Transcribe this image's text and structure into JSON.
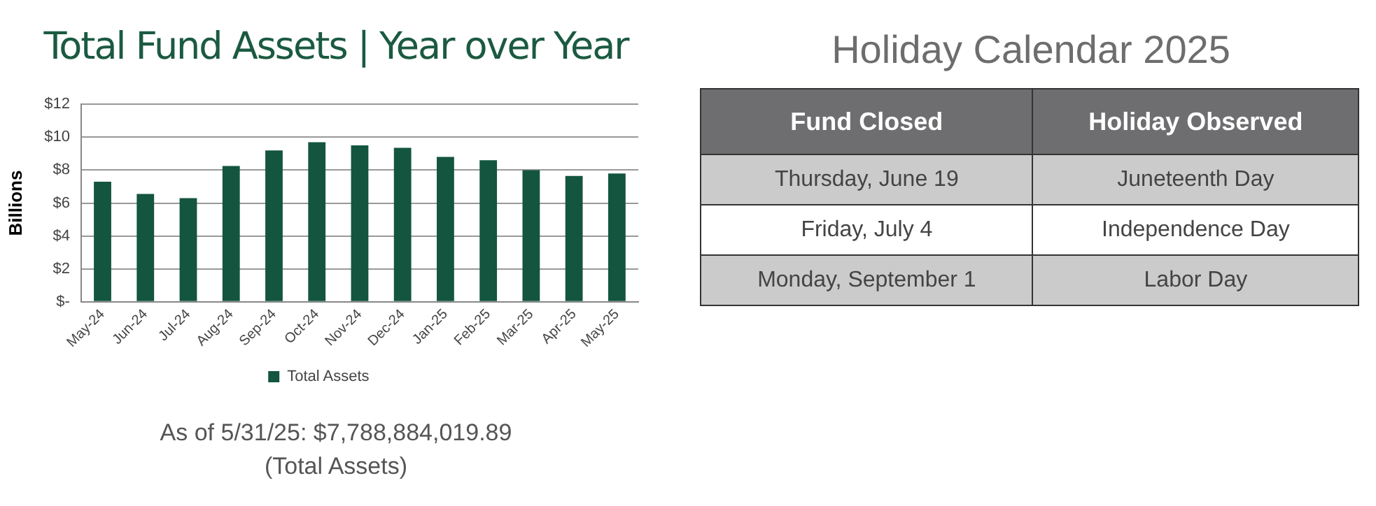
{
  "chart_data": [
    {
      "type": "bar",
      "title": "Total Fund Assets | Year over Year",
      "ylabel": "Billions",
      "categories": [
        "May-24",
        "Jun-24",
        "Jul-24",
        "Aug-24",
        "Sep-24",
        "Oct-24",
        "Nov-24",
        "Dec-24",
        "Jan-25",
        "Feb-25",
        "Mar-25",
        "Apr-25",
        "May-25"
      ],
      "series": [
        {
          "name": "Total Assets",
          "color": "#13553f",
          "values": [
            7.3,
            6.55,
            6.3,
            8.25,
            9.2,
            9.7,
            9.5,
            9.35,
            8.8,
            8.6,
            8.0,
            7.65,
            7.79
          ]
        }
      ],
      "ylim": [
        0,
        12
      ],
      "yticks": [
        {
          "value": 0,
          "label": "$-"
        },
        {
          "value": 2,
          "label": "$2"
        },
        {
          "value": 4,
          "label": "$4"
        },
        {
          "value": 6,
          "label": "$6"
        },
        {
          "value": 8,
          "label": "$8"
        },
        {
          "value": 10,
          "label": "$10"
        },
        {
          "value": 12,
          "label": "$12"
        }
      ],
      "grid": "y",
      "legend": "bottom",
      "annotations": [
        "As of 5/31/25: $7,788,884,019.89",
        "(Total Assets)"
      ]
    },
    {
      "type": "other",
      "title": "Holiday Calendar 2025",
      "annotations": [
        "Fund Closed",
        "Holiday Observed",
        "Thursday, June 19",
        "Juneteenth Day",
        "Friday, July 4",
        "Independence Day",
        "Monday, September 1",
        "Labor Day"
      ]
    }
  ]
}
